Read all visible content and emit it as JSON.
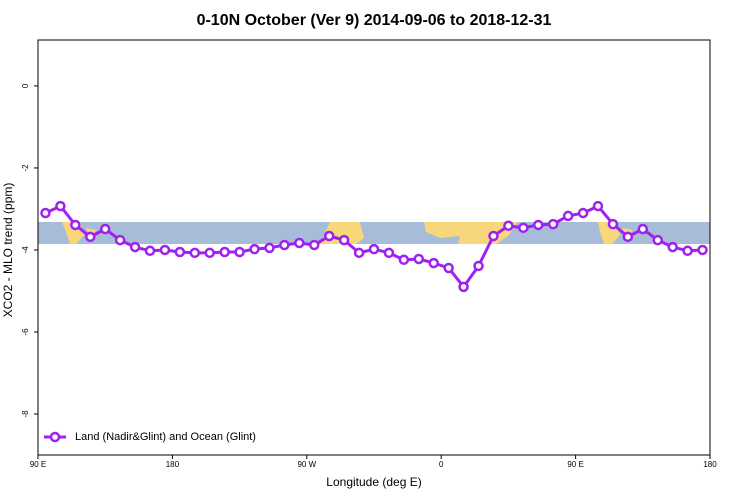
{
  "chart_data": {
    "type": "line",
    "title": "0-10N October (Ver 9)   2014-09-06 to 2018-12-31",
    "x_label": "Longitude (deg E)",
    "y_label": "XCO2 - MLO trend (ppm)",
    "x": [
      95,
      105,
      115,
      125,
      135,
      145,
      155,
      165,
      175,
      185,
      195,
      205,
      215,
      225,
      235,
      245,
      255,
      265,
      275,
      285,
      295,
      305,
      315,
      325,
      335,
      345,
      355,
      365,
      375,
      385,
      395,
      405,
      415,
      425,
      435,
      445,
      455,
      465,
      475,
      485,
      495,
      505,
      515,
      525,
      535
    ],
    "series": [
      {
        "name": "Land (Nadir&Glint) and Ocean (Glint)",
        "color": "#a020f0",
        "values": [
          -3.1,
          -2.93,
          -3.39,
          -3.68,
          -3.49,
          -3.76,
          -3.93,
          -4.02,
          -4.0,
          -4.05,
          -4.07,
          -4.07,
          -4.05,
          -4.05,
          -3.98,
          -3.95,
          -3.88,
          -3.83,
          -3.88,
          -3.66,
          -3.76,
          -4.07,
          -3.98,
          -4.07,
          -4.24,
          -4.22,
          -4.32,
          -4.44,
          -4.9,
          -4.39,
          -3.66,
          -3.41,
          -3.46,
          -3.39,
          -3.37,
          -3.17,
          -3.1,
          -2.93,
          -3.37,
          -3.68,
          -3.49,
          -3.76,
          -3.93,
          -4.02,
          -4.0
        ]
      }
    ],
    "xlim": [
      90,
      540
    ],
    "xticks": [
      {
        "value": 90,
        "label": "90 E"
      },
      180,
      {
        "value": 270,
        "label": "90 W"
      },
      {
        "value": 360,
        "label": "0"
      },
      {
        "value": 450,
        "label": "90 E"
      },
      {
        "value": 540,
        "label": "180"
      }
    ],
    "ylim": [
      -9.0,
      1.12
    ],
    "yticks": [
      0,
      -2,
      -4,
      -6,
      -8
    ],
    "legend": "bottom-left"
  }
}
